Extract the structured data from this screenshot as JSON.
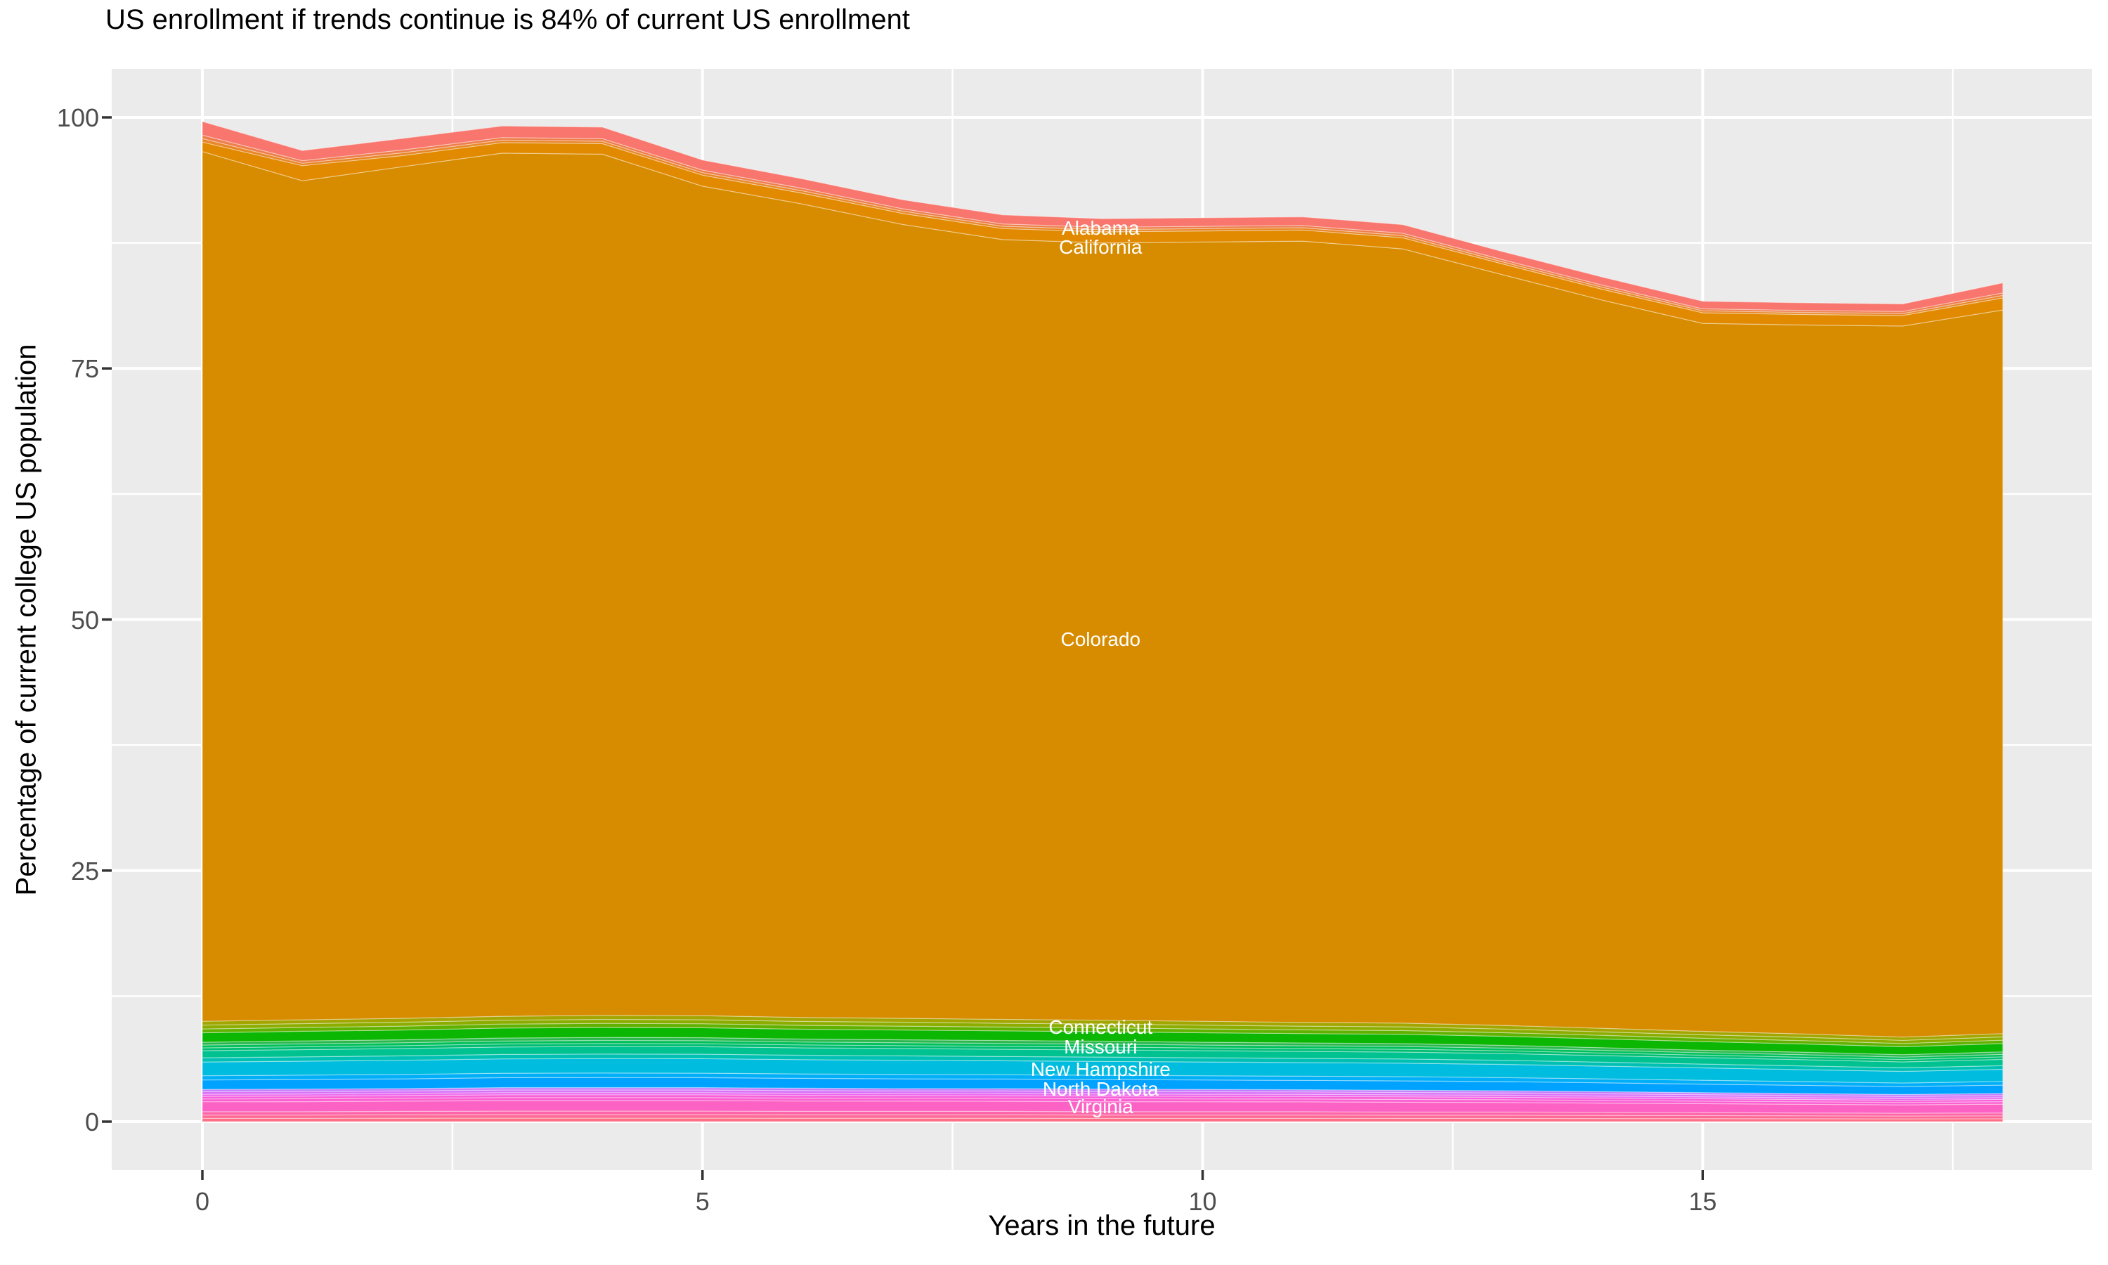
{
  "title": "US enrollment if trends continue is 84% of current US enrollment",
  "axes": {
    "x": {
      "title": "Years in the future",
      "tick_labels": [
        "0",
        "5",
        "10",
        "15"
      ],
      "tick_values": [
        0,
        5,
        10,
        15
      ],
      "minor_gridlines": [
        2.5,
        7.5,
        12.5,
        17.5
      ],
      "range": [
        0,
        18
      ]
    },
    "y": {
      "title": "Percentage of current college US population",
      "tick_labels": [
        "0",
        "25",
        "50",
        "75",
        "100"
      ],
      "tick_values": [
        0,
        25,
        50,
        75,
        100
      ],
      "minor_gridlines": [
        12.5,
        37.5,
        62.5,
        87.5
      ],
      "range": [
        0,
        100
      ]
    }
  },
  "colors": {
    "panel_bg": "#EBEBEB",
    "grid": "#FFFFFF",
    "tick_mark": "#333333",
    "tick_text": "#4D4D4D",
    "title_text": "#000000",
    "area_label_text": "#FFFFFF"
  },
  "chart_data": {
    "type": "area",
    "stacked": true,
    "grid": true,
    "legend": "none",
    "x": [
      0,
      1,
      2,
      3,
      4,
      5,
      6,
      7,
      8,
      9,
      10,
      11,
      12,
      13,
      14,
      15,
      16,
      17,
      18
    ],
    "series": [
      {
        "name": "",
        "color": "#FD6F85",
        "values": [
          0.33,
          0.33,
          0.34,
          0.35,
          0.35,
          0.35,
          0.34,
          0.34,
          0.34,
          0.33,
          0.33,
          0.33,
          0.32,
          0.32,
          0.31,
          0.3,
          0.29,
          0.28,
          0.29
        ]
      },
      {
        "name": "",
        "color": "#FE6A95",
        "values": [
          0.33,
          0.33,
          0.34,
          0.35,
          0.35,
          0.35,
          0.34,
          0.34,
          0.34,
          0.33,
          0.33,
          0.33,
          0.32,
          0.32,
          0.31,
          0.3,
          0.29,
          0.28,
          0.29
        ]
      },
      {
        "name": "",
        "color": "#FD65A9",
        "values": [
          0.33,
          0.33,
          0.34,
          0.35,
          0.35,
          0.35,
          0.34,
          0.34,
          0.34,
          0.33,
          0.33,
          0.33,
          0.32,
          0.32,
          0.31,
          0.3,
          0.29,
          0.28,
          0.29
        ]
      },
      {
        "name": "Virginia",
        "color": "#FC61C4",
        "values": [
          0.99,
          1.0,
          1.02,
          1.04,
          1.04,
          1.04,
          1.03,
          1.02,
          1.01,
          1.0,
          0.99,
          0.98,
          0.97,
          0.95,
          0.92,
          0.89,
          0.86,
          0.83,
          0.87
        ]
      },
      {
        "name": "",
        "color": "#FB5FD0",
        "values": [
          0.28,
          0.29,
          0.29,
          0.3,
          0.3,
          0.3,
          0.29,
          0.29,
          0.29,
          0.29,
          0.28,
          0.28,
          0.28,
          0.27,
          0.26,
          0.25,
          0.25,
          0.24,
          0.25
        ]
      },
      {
        "name": "",
        "color": "#F860D9",
        "values": [
          0.26,
          0.27,
          0.27,
          0.28,
          0.28,
          0.28,
          0.27,
          0.27,
          0.27,
          0.27,
          0.26,
          0.26,
          0.26,
          0.25,
          0.25,
          0.24,
          0.23,
          0.22,
          0.23
        ]
      },
      {
        "name": "",
        "color": "#EC64EE",
        "values": [
          0.21,
          0.21,
          0.21,
          0.22,
          0.22,
          0.22,
          0.22,
          0.21,
          0.21,
          0.21,
          0.21,
          0.21,
          0.2,
          0.2,
          0.19,
          0.19,
          0.18,
          0.17,
          0.18
        ]
      },
      {
        "name": "",
        "color": "#D873F8",
        "values": [
          0.25,
          0.25,
          0.25,
          0.26,
          0.26,
          0.26,
          0.26,
          0.25,
          0.25,
          0.25,
          0.25,
          0.24,
          0.24,
          0.23,
          0.23,
          0.22,
          0.21,
          0.21,
          0.21
        ]
      },
      {
        "name": "",
        "color": "#C47CFC",
        "values": [
          0.23,
          0.23,
          0.23,
          0.24,
          0.24,
          0.24,
          0.24,
          0.23,
          0.23,
          0.23,
          0.23,
          0.22,
          0.22,
          0.22,
          0.21,
          0.2,
          0.2,
          0.19,
          0.2
        ]
      },
      {
        "name": "North Dakota",
        "color": "#00A2FF",
        "values": [
          0.94,
          0.96,
          0.97,
          0.99,
          1.0,
          0.99,
          0.98,
          0.97,
          0.96,
          0.95,
          0.94,
          0.93,
          0.93,
          0.9,
          0.88,
          0.85,
          0.82,
          0.79,
          0.83
        ]
      },
      {
        "name": "",
        "color": "#00AFF8",
        "values": [
          0.42,
          0.43,
          0.44,
          0.44,
          0.45,
          0.45,
          0.44,
          0.44,
          0.43,
          0.43,
          0.42,
          0.42,
          0.42,
          0.41,
          0.39,
          0.38,
          0.37,
          0.36,
          0.37
        ]
      },
      {
        "name": "New Hampshire",
        "color": "#00BCDE",
        "values": [
          1.37,
          1.39,
          1.41,
          1.43,
          1.44,
          1.44,
          1.42,
          1.41,
          1.39,
          1.38,
          1.37,
          1.35,
          1.34,
          1.31,
          1.27,
          1.23,
          1.19,
          1.15,
          1.2
        ]
      },
      {
        "name": "",
        "color": "#00C0B4",
        "values": [
          0.42,
          0.43,
          0.44,
          0.44,
          0.45,
          0.45,
          0.44,
          0.44,
          0.43,
          0.43,
          0.42,
          0.42,
          0.42,
          0.41,
          0.39,
          0.38,
          0.37,
          0.36,
          0.37
        ]
      },
      {
        "name": "Missouri",
        "color": "#00C291",
        "values": [
          0.71,
          0.72,
          0.73,
          0.74,
          0.75,
          0.74,
          0.74,
          0.73,
          0.72,
          0.71,
          0.71,
          0.7,
          0.69,
          0.68,
          0.66,
          0.64,
          0.62,
          0.59,
          0.62
        ]
      },
      {
        "name": "",
        "color": "#00BD72",
        "values": [
          0.28,
          0.29,
          0.29,
          0.3,
          0.3,
          0.3,
          0.29,
          0.29,
          0.29,
          0.29,
          0.28,
          0.28,
          0.28,
          0.27,
          0.26,
          0.25,
          0.25,
          0.24,
          0.25
        ]
      },
      {
        "name": "",
        "color": "#00C05A",
        "values": [
          0.28,
          0.29,
          0.29,
          0.3,
          0.3,
          0.3,
          0.29,
          0.29,
          0.29,
          0.29,
          0.28,
          0.28,
          0.28,
          0.27,
          0.26,
          0.25,
          0.25,
          0.24,
          0.25
        ]
      },
      {
        "name": "",
        "color": "#2CB84F",
        "values": [
          0.28,
          0.29,
          0.29,
          0.3,
          0.3,
          0.3,
          0.29,
          0.29,
          0.29,
          0.29,
          0.28,
          0.28,
          0.28,
          0.27,
          0.26,
          0.25,
          0.25,
          0.24,
          0.25
        ]
      },
      {
        "name": "Connecticut",
        "color": "#0BB702",
        "values": [
          0.94,
          0.96,
          0.97,
          0.99,
          1.0,
          0.99,
          0.98,
          0.97,
          0.96,
          0.95,
          0.94,
          0.93,
          0.93,
          0.9,
          0.88,
          0.85,
          0.82,
          0.79,
          0.83
        ]
      },
      {
        "name": "",
        "color": "#61B200",
        "values": [
          0.38,
          0.38,
          0.39,
          0.39,
          0.4,
          0.4,
          0.39,
          0.39,
          0.38,
          0.38,
          0.38,
          0.37,
          0.37,
          0.36,
          0.35,
          0.34,
          0.33,
          0.32,
          0.33
        ]
      },
      {
        "name": "",
        "color": "#8CAD00",
        "values": [
          0.38,
          0.38,
          0.39,
          0.39,
          0.4,
          0.4,
          0.39,
          0.39,
          0.38,
          0.38,
          0.38,
          0.37,
          0.37,
          0.36,
          0.35,
          0.34,
          0.33,
          0.32,
          0.33
        ]
      },
      {
        "name": "",
        "color": "#A3A500",
        "values": [
          0.38,
          0.38,
          0.39,
          0.39,
          0.4,
          0.4,
          0.39,
          0.39,
          0.38,
          0.38,
          0.38,
          0.37,
          0.37,
          0.36,
          0.35,
          0.34,
          0.33,
          0.32,
          0.33
        ]
      },
      {
        "name": "Colorado",
        "color": "#D78C00",
        "values": [
          86.6,
          83.55,
          84.8,
          85.95,
          85.75,
          82.6,
          81.0,
          79.05,
          77.65,
          77.4,
          77.6,
          77.8,
          77.1,
          74.75,
          72.5,
          70.5,
          70.6,
          70.8,
          72.05
        ]
      },
      {
        "name": "California",
        "color": "#E18A00",
        "values": [
          0.95,
          1.5,
          1.1,
          1.05,
          1.05,
          1.1,
          1.08,
          1.1,
          1.1,
          1.1,
          1.1,
          1.1,
          1.1,
          1.08,
          1.08,
          1.05,
          1.05,
          1.05,
          1.2
        ]
      },
      {
        "name": "",
        "color": "#E88727",
        "values": [
          0.35,
          0.25,
          0.28,
          0.25,
          0.25,
          0.25,
          0.24,
          0.23,
          0.23,
          0.23,
          0.23,
          0.23,
          0.23,
          0.21,
          0.21,
          0.2,
          0.2,
          0.2,
          0.25
        ]
      },
      {
        "name": "",
        "color": "#EE7E4B",
        "values": [
          0.35,
          0.25,
          0.28,
          0.25,
          0.25,
          0.25,
          0.24,
          0.23,
          0.23,
          0.23,
          0.23,
          0.23,
          0.23,
          0.21,
          0.21,
          0.2,
          0.2,
          0.2,
          0.25
        ]
      },
      {
        "name": "Alabama",
        "color": "#F8766D",
        "values": [
          1.35,
          1.0,
          1.15,
          1.15,
          1.15,
          1.0,
          0.95,
          0.9,
          0.9,
          0.85,
          0.85,
          0.85,
          0.85,
          0.8,
          0.8,
          0.75,
          0.75,
          0.75,
          1.0
        ]
      }
    ],
    "labels": [
      {
        "text": "Alabama",
        "x": 8.98,
        "y": 88.95
      },
      {
        "text": "California",
        "x": 8.98,
        "y": 87.05
      },
      {
        "text": "Colorado",
        "x": 8.98,
        "y": 48.0
      },
      {
        "text": "Connecticut",
        "x": 8.98,
        "y": 9.38
      },
      {
        "text": "Missouri",
        "x": 8.98,
        "y": 7.42
      },
      {
        "text": "New Hampshire",
        "x": 8.98,
        "y": 5.18
      },
      {
        "text": "North Dakota",
        "x": 8.98,
        "y": 3.22
      },
      {
        "text": "Virginia",
        "x": 8.98,
        "y": 1.47
      }
    ]
  }
}
